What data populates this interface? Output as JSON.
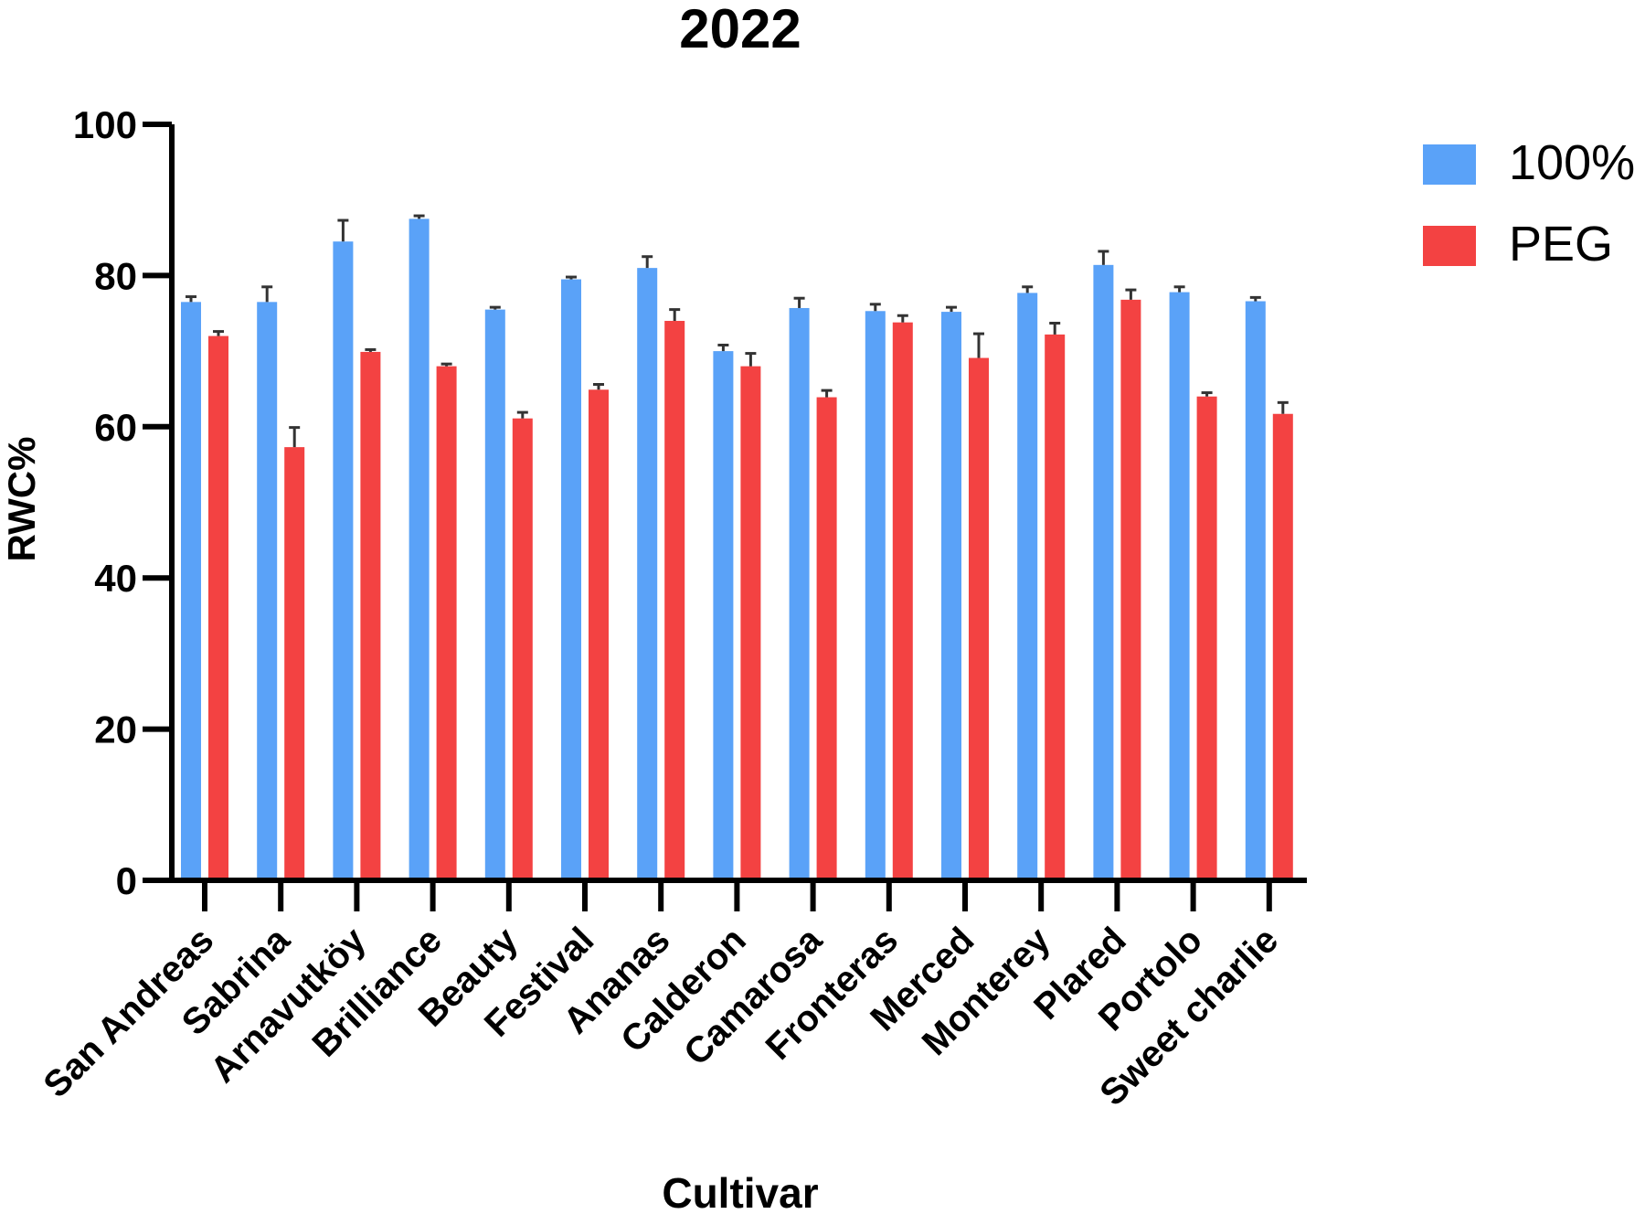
{
  "chart_data": {
    "type": "bar",
    "title": "2022",
    "xlabel": "Cultivar",
    "ylabel": "RWC%",
    "ylim": [
      0,
      100
    ],
    "yticks": [
      0,
      20,
      40,
      60,
      80,
      100
    ],
    "ytick_labels": [
      "0",
      "20",
      "40",
      "60",
      "80",
      "100"
    ],
    "grid": false,
    "legend_position": "top-right",
    "categories": [
      "San Andreas",
      "Sabrina",
      "Arnavutköy",
      "Brilliance",
      "Beauty",
      "Festival",
      "Ananas",
      "Calderon",
      "Camarosa",
      "Fronteras",
      "Merced",
      "Monterey",
      "Plared",
      "Portolo",
      "Sweet charlie"
    ],
    "series": [
      {
        "name": "100%",
        "color": "#5aa2f8",
        "values": [
          76.5,
          76.5,
          84.5,
          87.5,
          75.5,
          79.5,
          81,
          70,
          75.7,
          75.3,
          75.2,
          77.7,
          81.4,
          77.8,
          76.6
        ],
        "errors": [
          0.7,
          2.0,
          2.8,
          0.4,
          0.3,
          0.3,
          1.5,
          0.8,
          1.3,
          0.9,
          0.6,
          0.8,
          1.8,
          0.7,
          0.5
        ]
      },
      {
        "name": "PEG",
        "color": "#f34242",
        "values": [
          72,
          57.3,
          69.9,
          68,
          61.1,
          64.9,
          74,
          68,
          63.9,
          73.8,
          69.1,
          72.2,
          76.8,
          64,
          61.7
        ],
        "errors": [
          0.6,
          2.6,
          0.3,
          0.3,
          0.8,
          0.7,
          1.5,
          1.7,
          0.9,
          0.9,
          3.2,
          1.5,
          1.3,
          0.5,
          1.5
        ]
      }
    ]
  }
}
